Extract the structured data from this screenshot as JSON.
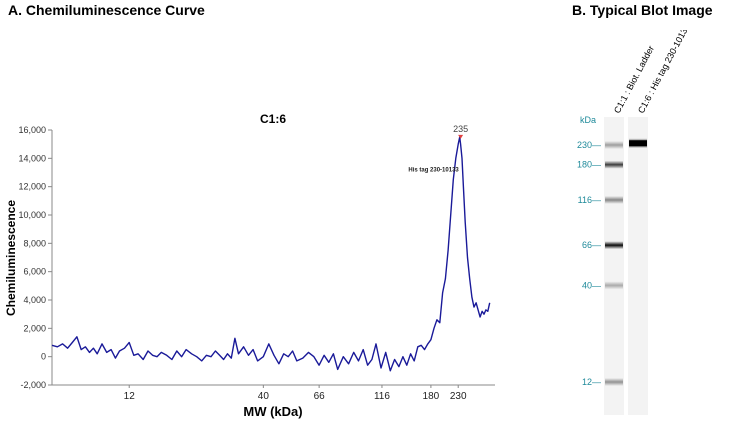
{
  "panels": {
    "a_title": "A. Chemiluminescence Curve",
    "b_title": "B.   Typical Blot Image"
  },
  "colors": {
    "line": "#1a1a99",
    "peak_marker": "#e04040",
    "axis": "#888888",
    "mw_label": "#1f8a9a"
  },
  "chart_data": {
    "type": "line",
    "title": "C1:6",
    "xlabel": "MW (kDa)",
    "ylabel": "Chemiluminescence",
    "x_scale": "log",
    "xlim": [
      6,
      320
    ],
    "ylim": [
      -2000,
      16000
    ],
    "y_ticks": [
      -2000,
      0,
      2000,
      4000,
      6000,
      8000,
      10000,
      12000,
      14000,
      16000
    ],
    "y_tick_labels": [
      "-2,000",
      "0",
      "2,000",
      "4,000",
      "6,000",
      "8,000",
      "10,000",
      "12,000",
      "14,000",
      "16,000"
    ],
    "x_ticks": [
      12,
      40,
      66,
      116,
      180,
      230
    ],
    "x_tick_labels": [
      "12",
      "40",
      "66",
      "116",
      "180",
      "230"
    ],
    "grid": false,
    "peak": {
      "label": "235",
      "x": 235,
      "y": 15300
    },
    "annotation": {
      "text": "His tag 230-10133",
      "x": 225,
      "y": 13200
    },
    "series": [
      {
        "x": [
          6.0,
          6.3,
          6.6,
          6.9,
          7.2,
          7.5,
          7.8,
          8.1,
          8.4,
          8.7,
          9.0,
          9.4,
          9.8,
          10.2,
          10.6,
          11.0,
          11.5,
          12.0,
          12.5,
          13.0,
          13.6,
          14.2,
          14.8,
          15.4,
          16.0,
          16.8,
          17.6,
          18.4,
          19.2,
          20.0,
          21.0,
          22.0,
          23.0,
          24.0,
          25.0,
          26.0,
          27.0,
          28.0,
          29.0,
          30.0,
          31.0,
          32.0,
          33.5,
          35.0,
          36.5,
          38.0,
          40.0,
          42.0,
          44.0,
          46.0,
          48.0,
          50.0,
          52.0,
          54.0,
          57.0,
          60.0,
          63.0,
          66.0,
          69.0,
          72.0,
          75.0,
          78.0,
          82.0,
          86.0,
          90.0,
          94.0,
          98.0,
          102.0,
          106.0,
          110.0,
          115.0,
          120.0,
          125.0,
          130.0,
          135.0,
          140.0,
          145.0,
          150.0,
          155.0,
          160.0,
          165.0,
          170.0,
          175.0,
          180.0,
          185.0,
          190.0,
          195.0,
          200.0,
          205.0,
          210.0,
          215.0,
          220.0,
          225.0,
          230.0,
          233.0,
          235.0,
          238.0,
          241.0,
          245.0,
          250.0,
          255.0,
          260.0,
          265.0,
          270.0,
          275.0,
          280.0,
          285.0,
          290.0,
          295.0,
          300.0,
          305.0
        ],
        "y": [
          800,
          700,
          900,
          600,
          1000,
          1400,
          500,
          700,
          300,
          600,
          200,
          900,
          300,
          500,
          -100,
          400,
          600,
          1000,
          100,
          200,
          -200,
          400,
          100,
          0,
          300,
          100,
          -200,
          400,
          0,
          500,
          200,
          0,
          -300,
          100,
          0,
          400,
          100,
          -200,
          200,
          -100,
          1300,
          200,
          700,
          100,
          500,
          -300,
          0,
          900,
          100,
          -500,
          200,
          0,
          400,
          -300,
          -100,
          300,
          0,
          -600,
          100,
          -400,
          200,
          -900,
          0,
          -500,
          300,
          -300,
          500,
          -600,
          -200,
          900,
          -800,
          300,
          -1000,
          -200,
          -700,
          0,
          -600,
          200,
          -300,
          700,
          800,
          500,
          900,
          1200,
          2000,
          2600,
          2400,
          4500,
          5500,
          7500,
          10000,
          12500,
          14000,
          15000,
          15500,
          15000,
          14000,
          12000,
          9500,
          7000,
          5500,
          4200,
          3500,
          3800,
          3300,
          2800,
          3200,
          3000,
          3300,
          3200,
          3800
        ]
      }
    ]
  },
  "blot": {
    "kda_label": "kDa",
    "lane1_label": "C1:1 : Biot. Ladder",
    "lane2_label": "C1:6 : His tag 230-10133",
    "markers": [
      {
        "label": "230",
        "kda": 230
      },
      {
        "label": "180",
        "kda": 180
      },
      {
        "label": "116",
        "kda": 116
      },
      {
        "label": "66",
        "kda": 66
      },
      {
        "label": "40",
        "kda": 40
      },
      {
        "label": "12",
        "kda": 12
      }
    ],
    "ladder_band_intensity": [
      0.35,
      0.75,
      0.45,
      0.95,
      0.3,
      0.4
    ],
    "sample_band": {
      "kda": 235,
      "intensity": 1.0
    }
  }
}
